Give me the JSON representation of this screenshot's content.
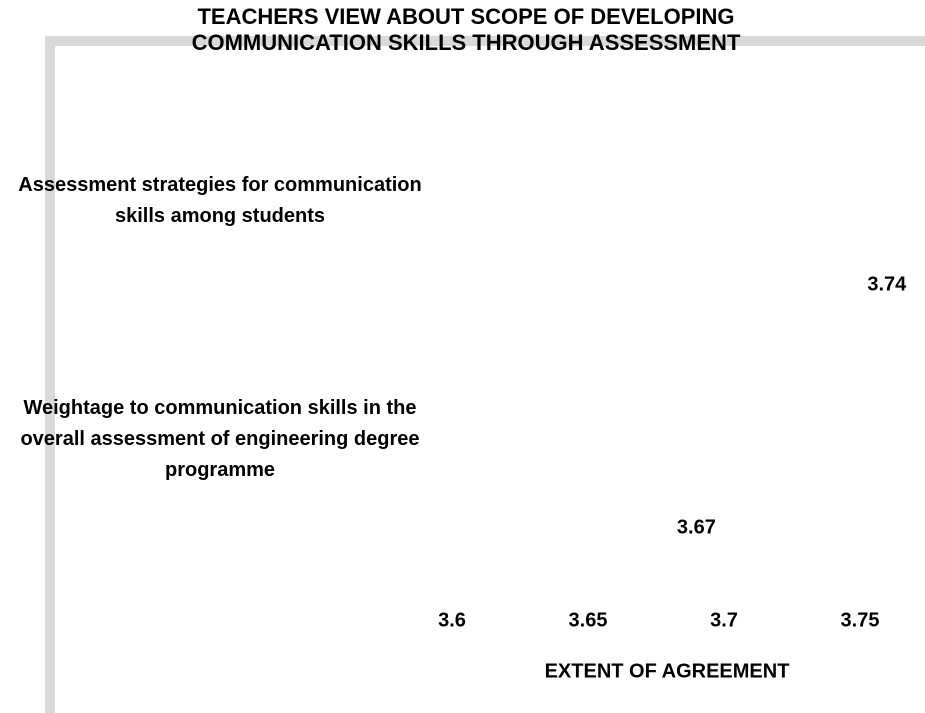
{
  "chart_data": {
    "type": "barh",
    "title": "TEACHERS VIEW ABOUT SCOPE OF DEVELOPING COMMUNICATION SKILLS THROUGH ASSESSMENT",
    "categories": [
      "Assessment strategies for communication skills among students",
      "Weightage to communication skills in the overall assessment of engineering degree programme"
    ],
    "values": [
      3.74,
      3.67
    ],
    "color": "#ffffff",
    "xlabel": "EXTENT OF AGREEMENT",
    "xlim": [
      3.6,
      3.75
    ],
    "xticks": [
      3.6,
      3.65,
      3.7,
      3.75
    ]
  }
}
